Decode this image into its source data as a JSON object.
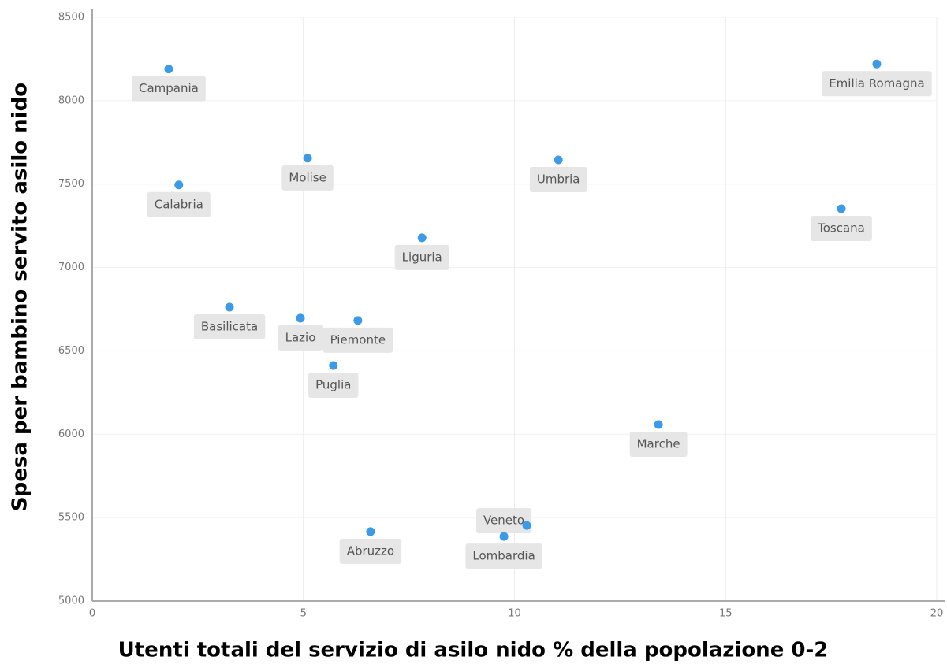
{
  "chart_data": {
    "type": "scatter",
    "x_label": "Utenti totali del servizio di asilo nido % della popolazione 0-2",
    "y_label": "Spesa per bambino servito asilo nido",
    "point_labels": [
      "Campania",
      "Emilia Romagna",
      "Molise",
      "Umbria",
      "Calabria",
      "Toscana",
      "Liguria",
      "Basilicata",
      "Lazio",
      "Piemonte",
      "Puglia",
      "Marche",
      "Veneto",
      "Lombardia",
      "Abruzzo"
    ],
    "x": [
      1.81,
      18.58,
      5.1,
      11.04,
      2.05,
      17.74,
      7.81,
      3.25,
      4.93,
      6.29,
      5.71,
      13.41,
      10.29,
      9.75,
      6.59
    ],
    "values": [
      8190,
      8220,
      7655,
      7645,
      7495,
      7352,
      7178,
      6762,
      6696,
      6682,
      6412,
      6058,
      5453,
      5387,
      5416
    ],
    "color": "#3b9be8",
    "xlim": [
      0,
      20
    ],
    "xticks": [
      0,
      5,
      10,
      15,
      20
    ],
    "ylim": [
      5000,
      8500
    ],
    "yticks": [
      5000,
      5500,
      6000,
      6500,
      7000,
      7500,
      8000,
      8500
    ],
    "grid": true
  }
}
